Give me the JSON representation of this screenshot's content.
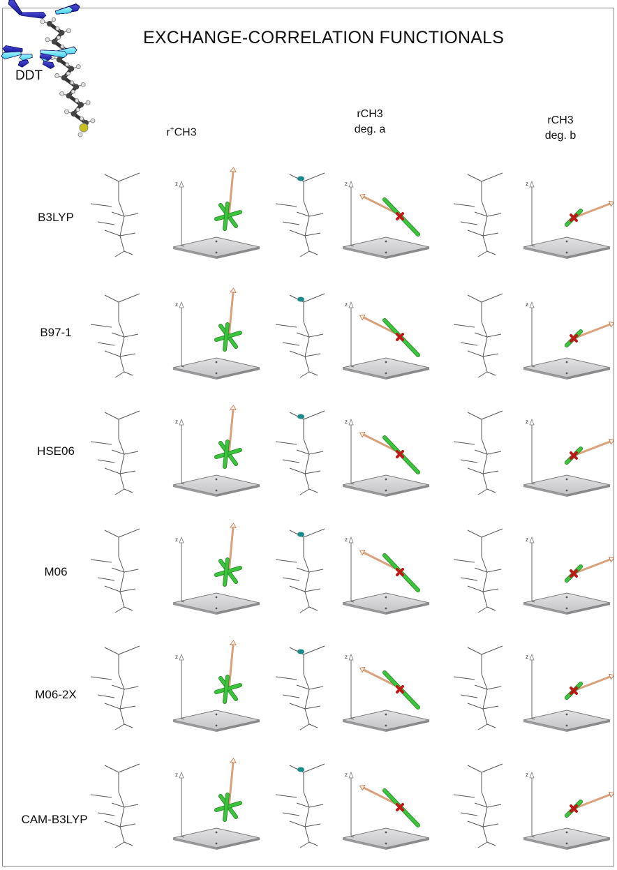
{
  "figure": {
    "title": "EXCHANGE-CORRELATION FUNCTIONALS",
    "molecule_label": "DDT",
    "columns": [
      {
        "line1": "r",
        "sup": "+",
        "line1_rest": "CH3",
        "line2": ""
      },
      {
        "line1": "rCH3",
        "sup": "",
        "line1_rest": "",
        "line2": "deg. a"
      },
      {
        "line1": "rCH3",
        "sup": "",
        "line1_rest": "",
        "line2": "deg. b"
      }
    ],
    "rows": [
      "B3LYP",
      "B97-1",
      "HSE06",
      "M06",
      "M06-2X",
      "CAM-B3LYP"
    ],
    "axis_label": "z"
  },
  "colors": {
    "bond": "#555555",
    "dark_blue_vector": "#1a1a9a",
    "cyan_vector": "#3fd0e8",
    "green_rod": "#3cc43c",
    "red_cross": "#c01818",
    "tan_arrow": "#d9a07a",
    "plane_fill": "#c4c4c6",
    "plane_stroke": "#7a7a7a",
    "sulfur": "#c8c018",
    "carbon": "#444444",
    "hydrogen": "#e0e0e0"
  },
  "icons": {
    "molecule": "ddt-chain-icon",
    "vector": "displacement-arrow-icon",
    "plane": "gray-plane-icon"
  }
}
